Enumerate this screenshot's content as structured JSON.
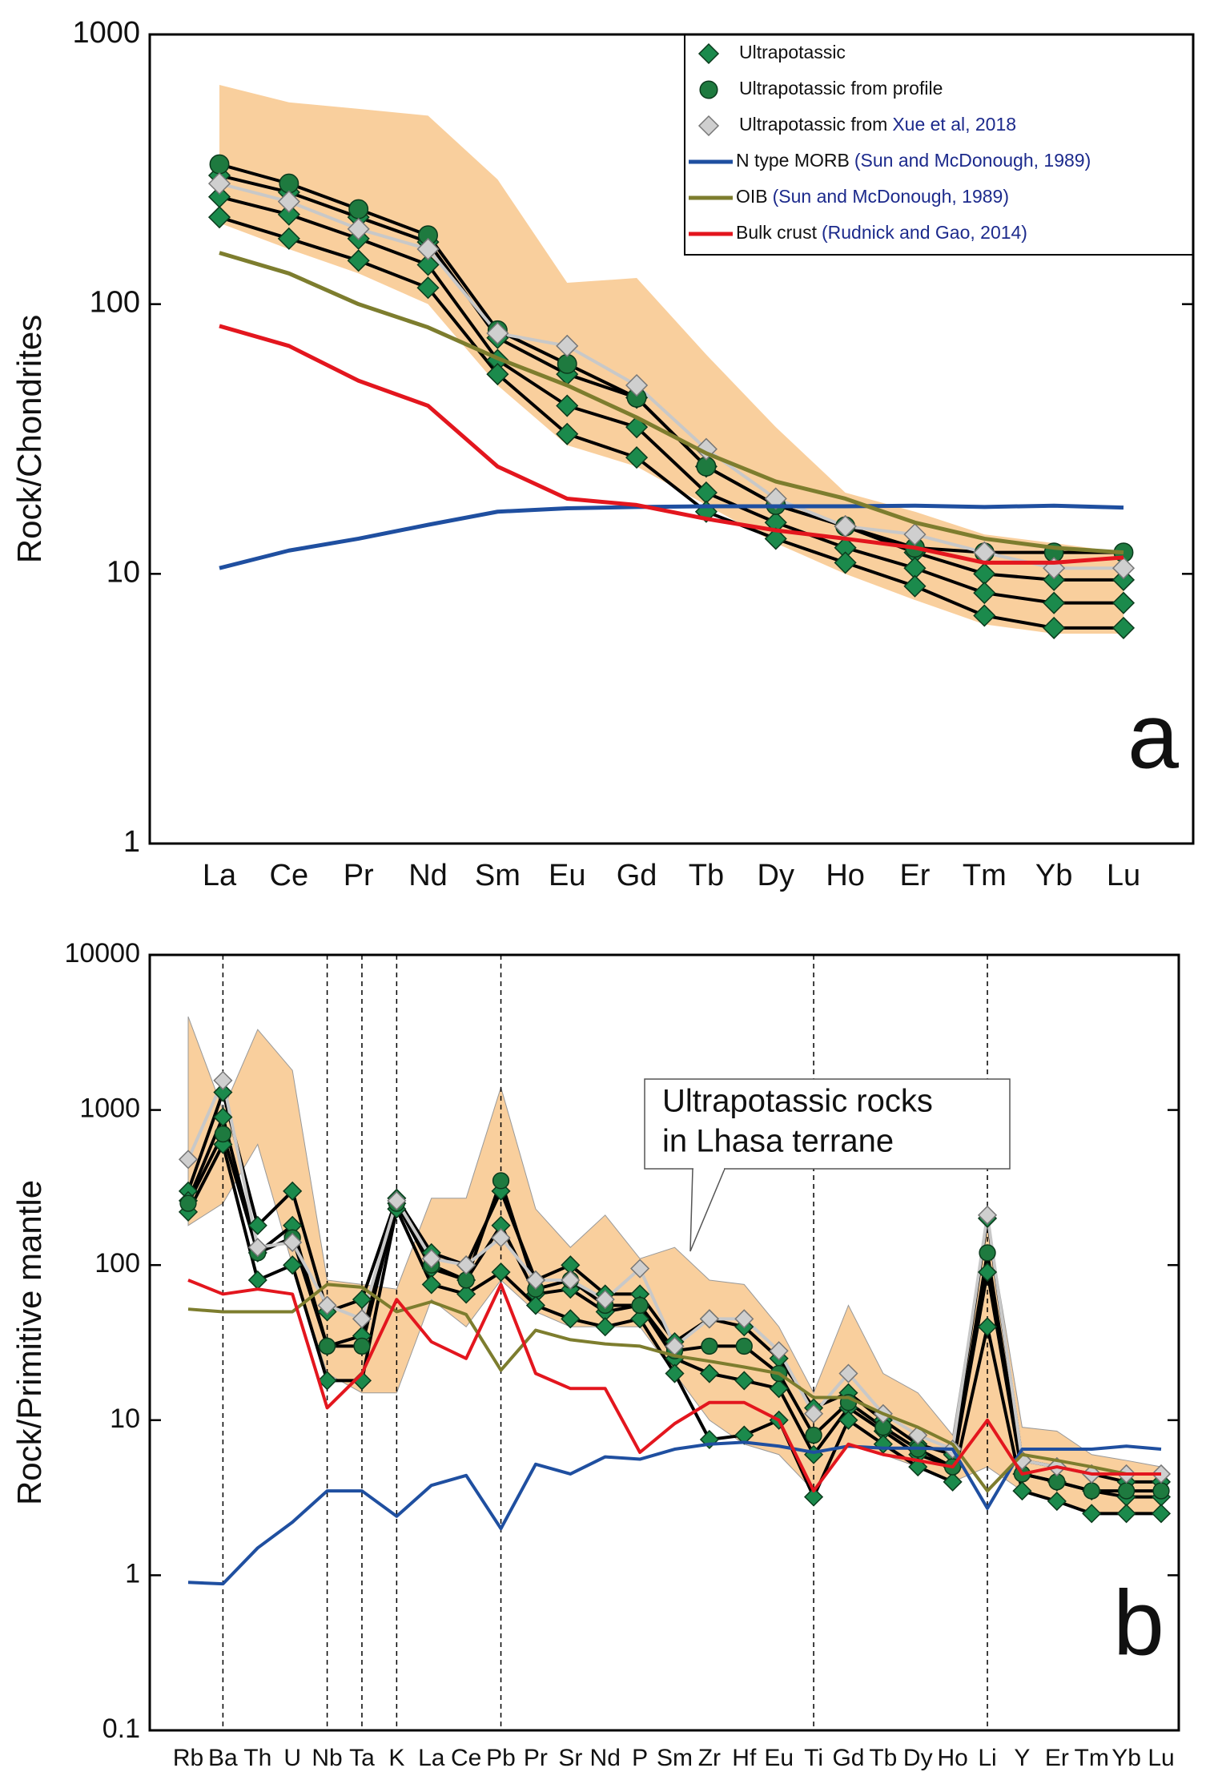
{
  "chart_data": [
    {
      "type": "line",
      "y_scale": "log",
      "ylabel": "Rock/Chondrites",
      "panel_label": "a",
      "categories": [
        "La",
        "Ce",
        "Pr",
        "Nd",
        "Sm",
        "Eu",
        "Gd",
        "Tb",
        "Dy",
        "Ho",
        "Er",
        "Tm",
        "Yb",
        "Lu"
      ],
      "ylim": [
        1,
        1000
      ],
      "yticks": [
        1,
        10,
        100,
        1000
      ],
      "legend": "top-right",
      "envelope": {
        "color": "#f9cf9d",
        "upper": [
          650,
          560,
          530,
          500,
          290,
          120,
          125,
          65,
          35,
          20,
          17,
          14,
          13,
          12
        ],
        "lower": [
          200,
          160,
          130,
          100,
          50,
          30,
          25,
          18,
          13,
          10,
          8,
          6.5,
          6,
          6
        ]
      },
      "samples": [
        {
          "name": "Ultrapotassic",
          "marker": "diamond",
          "color": "#1b8a4c",
          "line_color": "#000000",
          "lines": [
            [
              300,
              260,
              210,
              170,
              75,
              55,
              45,
              25,
              18,
              15,
              12,
              10,
              9.5,
              9.5
            ],
            [
              250,
              215,
              175,
              140,
              62,
              42,
              35,
              20,
              15.5,
              12.5,
              10.5,
              8.5,
              7.8,
              7.8
            ],
            [
              210,
              175,
              145,
              115,
              55,
              33,
              27,
              17,
              13.5,
              11,
              9,
              7,
              6.3,
              6.3
            ]
          ]
        },
        {
          "name": "Ultrapotassic from profile",
          "marker": "circle",
          "color": "#1e7a3f",
          "line_color": "#000000",
          "lines": [
            [
              330,
              280,
              225,
              180,
              80,
              60,
              45,
              25,
              18,
              15,
              12.5,
              12,
              12,
              12
            ]
          ]
        },
        {
          "name": "Ultrapotassic from",
          "citation": "Xue et al, 2018",
          "marker": "diamond",
          "color": "#cfcfcf",
          "line_color": "#c8c8c8",
          "lines": [
            [
              280,
              240,
              190,
              160,
              78,
              70,
              50,
              29,
              19,
              15,
              14,
              12,
              10.5,
              10.5
            ]
          ]
        }
      ],
      "series": [
        {
          "name": "N type MORB",
          "citation": "(Sun and McDonough, 1989)",
          "color": "#1f4fa0",
          "values": [
            10.5,
            12.2,
            13.5,
            15.2,
            17,
            17.5,
            17.7,
            17.8,
            17.8,
            17.8,
            17.9,
            17.7,
            17.9,
            17.6
          ]
        },
        {
          "name": "OIB",
          "citation": "(Sun and McDonough, 1989)",
          "color": "#7d7d2e",
          "values": [
            155,
            130,
            100,
            82,
            63,
            50,
            38,
            28,
            22,
            19,
            15.5,
            13.5,
            12.5,
            12
          ]
        },
        {
          "name": "Bulk crust",
          "citation": "(Rudnick and Gao, 2014)",
          "color": "#e3161e",
          "values": [
            83,
            70,
            52,
            42,
            25,
            19,
            18,
            16,
            14.5,
            13.5,
            12.5,
            11,
            11,
            11.5
          ]
        }
      ]
    },
    {
      "type": "line",
      "y_scale": "log",
      "ylabel": "Rock/Primitive mantle",
      "panel_label": "b",
      "categories": [
        "Rb",
        "Ba",
        "Th",
        "U",
        "Nb",
        "Ta",
        "K",
        "La",
        "Ce",
        "Pb",
        "Pr",
        "Sr",
        "Nd",
        "P",
        "Sm",
        "Zr",
        "Hf",
        "Eu",
        "Ti",
        "Gd",
        "Tb",
        "Dy",
        "Ho",
        "Li",
        "Y",
        "Er",
        "Tm",
        "Yb",
        "Lu"
      ],
      "ylim": [
        0.1,
        10000
      ],
      "yticks": [
        0.1,
        1,
        10,
        100,
        1000,
        10000
      ],
      "dashed_at": [
        1,
        4,
        5,
        6,
        9,
        18,
        23
      ],
      "annotation": {
        "lines": [
          "Ultrapotassic rocks",
          "in Lhasa terrane"
        ],
        "color": "#f08a1c"
      },
      "envelope": {
        "color": "#f9cf9d",
        "upper": [
          4000,
          1000,
          3300,
          1800,
          80,
          75,
          70,
          270,
          270,
          1400,
          230,
          130,
          210,
          110,
          130,
          80,
          75,
          40,
          15,
          55,
          20,
          15,
          8,
          200,
          9,
          8.5,
          6,
          5.5,
          5
        ],
        "lower": [
          180,
          250,
          600,
          100,
          20,
          15,
          15,
          60,
          40,
          80,
          50,
          40,
          40,
          40,
          20,
          10,
          7,
          6,
          3.5,
          7,
          6,
          5,
          4,
          5,
          3.5,
          3,
          2.5,
          2.5,
          2.5
        ]
      },
      "samples": [
        {
          "marker": "diamond",
          "color": "#1b8a4c",
          "line_color": "#000000",
          "lines": [
            [
              300,
              1300,
              180,
              300,
              50,
              60,
              270,
              120,
              100,
              300,
              80,
              100,
              65,
              65,
              32,
              45,
              40,
              25,
              12,
              15,
              10,
              7,
              6,
              200,
              5.5,
              5,
              4.5,
              4,
              4
            ],
            [
              260,
              900,
              120,
              180,
              30,
              35,
              250,
              95,
              80,
              180,
              65,
              70,
              50,
              55,
              25,
              20,
              18,
              16,
              6,
              12,
              8.5,
              6,
              5,
              90,
              4.5,
              4,
              3.5,
              3.2,
              3.2
            ],
            [
              220,
              600,
              80,
              100,
              18,
              18,
              230,
              75,
              65,
              90,
              55,
              45,
              40,
              45,
              20,
              7.5,
              8,
              10,
              3.2,
              10,
              7,
              5,
              4,
              40,
              3.5,
              3,
              2.5,
              2.5,
              2.5
            ]
          ]
        },
        {
          "marker": "circle",
          "color": "#1e7a3f",
          "line_color": "#000000",
          "lines": [
            [
              250,
              700,
              120,
              150,
              30,
              30,
              250,
              100,
              80,
              350,
              70,
              80,
              55,
              55,
              28,
              30,
              30,
              20,
              8,
              13,
              9,
              6.5,
              5,
              120,
              4.5,
              4,
              3.5,
              3.5,
              3.5
            ]
          ]
        },
        {
          "marker": "diamond",
          "color": "#cfcfcf",
          "line_color": "#c8c8c8",
          "lines": [
            [
              480,
              1550,
              130,
              140,
              55,
              45,
              260,
              110,
              100,
              150,
              80,
              80,
              60,
              95,
              30,
              45,
              45,
              28,
              11,
              20,
              11,
              8,
              6.5,
              210,
              5.5,
              5,
              4.5,
              4.5,
              4.5
            ]
          ]
        }
      ],
      "series": [
        {
          "color": "#1f4fa0",
          "values": [
            0.9,
            0.88,
            1.5,
            2.2,
            3.5,
            3.5,
            2.4,
            3.8,
            4.4,
            2.0,
            5.2,
            4.5,
            5.8,
            5.6,
            6.5,
            7,
            7.2,
            6.8,
            6.2,
            6.8,
            6.6,
            6.6,
            6.5,
            2.7,
            6.5,
            6.5,
            6.5,
            6.8,
            6.5
          ]
        },
        {
          "color": "#7d7d2e",
          "values": [
            52,
            50,
            50,
            50,
            75,
            72,
            50,
            58,
            48,
            21,
            38,
            33,
            31,
            30,
            26,
            24,
            22,
            20,
            14,
            14,
            11,
            9,
            7,
            3.5,
            6,
            5.5,
            5,
            4.5,
            4.5
          ]
        },
        {
          "color": "#e3161e",
          "values": [
            80,
            65,
            70,
            65,
            12,
            20,
            60,
            32,
            25,
            75,
            20,
            16,
            16,
            6.2,
            9.5,
            13,
            13,
            10,
            3.5,
            7,
            6,
            5.5,
            5,
            10,
            4.5,
            5,
            4.5,
            4.5,
            4.5
          ]
        }
      ]
    }
  ]
}
